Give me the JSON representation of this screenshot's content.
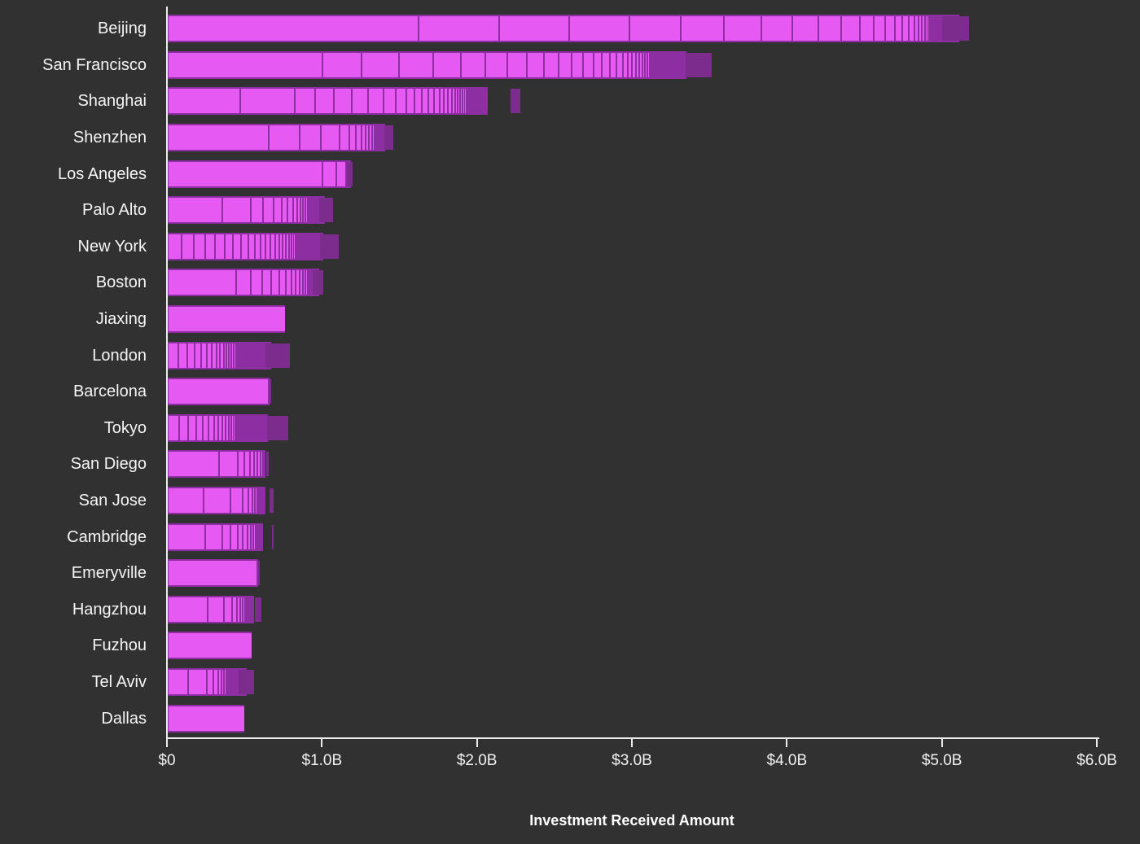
{
  "chart_data": {
    "type": "bar",
    "orientation": "horizontal",
    "title": "",
    "xlabel": "Investment Received Amount",
    "ylabel": "",
    "unit": "USD (bar lengths estimated from axis, in $ millions)",
    "xlim_usd_millions": [
      0,
      6000
    ],
    "x_tick_labels": [
      "$0",
      "$1.0B",
      "$2.0B",
      "$3.0B",
      "$4.0B",
      "$5.0B",
      "$6.0B"
    ],
    "x_tick_values_musd": [
      0,
      1000,
      2000,
      3000,
      4000,
      5000,
      6000
    ],
    "grid": false,
    "legend": "none",
    "bar_style": "each bar is a stack of individual investment segments sorted descending, separated by thin purple lines; many bars end with a solid darker purple final segment",
    "categories": [
      "Beijing",
      "San Francisco",
      "Shanghai",
      "Shenzhen",
      "Los Angeles",
      "Palo Alto",
      "New York",
      "Boston",
      "Jiaxing",
      "London",
      "Barcelona",
      "Tokyo",
      "San Diego",
      "San Jose",
      "Cambridge",
      "Emeryville",
      "Hangzhou",
      "Fuzhou",
      "Tel Aviv",
      "Dallas"
    ],
    "totals_musd": [
      5110,
      3350,
      2070,
      1410,
      1190,
      1020,
      1010,
      980,
      760,
      670,
      660,
      650,
      635,
      635,
      620,
      590,
      560,
      545,
      515,
      500
    ],
    "bars": [
      {
        "label": "Beijing",
        "total_musd": 5110,
        "final_dark_segment_musd": 170,
        "segments_musd": [
          1620,
          520,
          450,
          390,
          330,
          280,
          240,
          200,
          170,
          145,
          120,
          90,
          75,
          60,
          50,
          42,
          35,
          28,
          22,
          18,
          14,
          11,
          10,
          5,
          4,
          3,
          3,
          2,
          2,
          1
        ]
      },
      {
        "label": "San Francisco",
        "total_musd": 3350,
        "final_dark_segment_musd": 170,
        "segments_musd": [
          1000,
          250,
          240,
          221,
          180,
          160,
          140,
          125,
          110,
          95,
          85,
          75,
          65,
          57,
          50,
          44,
          38,
          33,
          29,
          25,
          22,
          19,
          16,
          14,
          12,
          10,
          9,
          8,
          7,
          6,
          5,
          4,
          4,
          3,
          3,
          2,
          2,
          2,
          2,
          1,
          1,
          1,
          1,
          1,
          1,
          1,
          1
        ]
      },
      {
        "label": "Shanghai",
        "total_musd": 2070,
        "final_dark_segment_musd": 60,
        "segments_musd": [
          470,
          350,
          130,
          120,
          120,
          105,
          95,
          80,
          70,
          52,
          47,
          42,
          38,
          34,
          30,
          27,
          24,
          21,
          18,
          16,
          14,
          12,
          11,
          10,
          9,
          8,
          7,
          6,
          5,
          5,
          4,
          4,
          3,
          3,
          2,
          2,
          2,
          2,
          1,
          1,
          1,
          1,
          1,
          1,
          1,
          1,
          1,
          1,
          1,
          1
        ]
      },
      {
        "label": "Shenzhen",
        "total_musd": 1410,
        "final_dark_segment_musd": 60,
        "segments_musd": [
          650,
          200,
          140,
          120,
          60,
          45,
          35,
          28,
          22,
          17,
          12,
          8,
          5,
          3,
          2,
          2,
          1
        ]
      },
      {
        "label": "Los Angeles",
        "total_musd": 1190,
        "final_dark_segment_musd": 40,
        "segments_musd": [
          1000,
          85,
          65
        ]
      },
      {
        "label": "Palo Alto",
        "total_musd": 1020,
        "final_dark_segment_musd": 90,
        "segments_musd": [
          350,
          185,
          80,
          70,
          50,
          40,
          33,
          27,
          22,
          18,
          14,
          11,
          9,
          7,
          5,
          4,
          2,
          2,
          1
        ]
      },
      {
        "label": "New York",
        "total_musd": 1010,
        "final_dark_segment_musd": 120,
        "segments_musd": [
          90,
          80,
          72,
          65,
          60,
          55,
          50,
          46,
          42,
          38,
          35,
          32,
          29,
          26,
          23,
          20,
          18,
          16,
          14,
          12,
          10,
          9,
          8,
          7,
          6,
          5,
          4,
          4,
          3,
          3,
          2,
          2,
          2,
          1,
          1
        ]
      },
      {
        "label": "Boston",
        "total_musd": 980,
        "final_dark_segment_musd": 70,
        "segments_musd": [
          440,
          95,
          75,
          60,
          50,
          42,
          35,
          29,
          24,
          20,
          16,
          13,
          6,
          3,
          2
        ]
      },
      {
        "label": "Jiaxing",
        "total_musd": 760,
        "final_dark_segment_musd": 0,
        "segments_musd": [
          760
        ]
      },
      {
        "label": "London",
        "total_musd": 670,
        "final_dark_segment_musd": 160,
        "segments_musd": [
          70,
          55,
          48,
          42,
          37,
          33,
          29,
          25,
          22,
          19,
          17,
          15,
          13,
          11,
          10,
          9,
          8,
          7,
          6,
          5,
          5,
          4,
          4,
          3,
          3,
          2,
          2,
          2,
          1,
          1,
          1,
          1
        ]
      },
      {
        "label": "Barcelona",
        "total_musd": 660,
        "final_dark_segment_musd": 10,
        "segments_musd": [
          650
        ]
      },
      {
        "label": "Tokyo",
        "total_musd": 650,
        "final_dark_segment_musd": 140,
        "segments_musd": [
          75,
          58,
          50,
          44,
          38,
          33,
          29,
          25,
          22,
          19,
          16,
          14,
          12,
          10,
          9,
          8,
          7,
          6,
          5,
          5,
          4,
          4,
          3,
          3,
          2,
          2,
          2,
          1,
          1,
          1,
          1,
          1
        ]
      },
      {
        "label": "San Diego",
        "total_musd": 635,
        "final_dark_segment_musd": 15,
        "segments_musd": [
          330,
          120,
          45,
          35,
          28,
          22,
          17,
          13,
          6,
          4
        ]
      },
      {
        "label": "San Jose",
        "total_musd": 635,
        "final_dark_segment_musd": 30,
        "segments_musd": [
          230,
          175,
          80,
          35,
          25,
          18,
          13,
          9,
          7,
          5,
          3,
          2,
          2,
          1
        ]
      },
      {
        "label": "Cambridge",
        "total_musd": 620,
        "final_dark_segment_musd": 10,
        "segments_musd": [
          240,
          110,
          55,
          45,
          35,
          28,
          22,
          17,
          13,
          10,
          8,
          6,
          5,
          4,
          3,
          3,
          2,
          2,
          2
        ]
      },
      {
        "label": "Emeryville",
        "total_musd": 590,
        "final_dark_segment_musd": 10,
        "segments_musd": [
          580
        ]
      },
      {
        "label": "Hangzhou",
        "total_musd": 560,
        "final_dark_segment_musd": 40,
        "segments_musd": [
          260,
          105,
          50,
          30,
          22,
          16,
          12,
          9,
          7,
          5,
          2,
          1,
          1
        ]
      },
      {
        "label": "Fuzhou",
        "total_musd": 545,
        "final_dark_segment_musd": 0,
        "segments_musd": [
          545
        ]
      },
      {
        "label": "Tel Aviv",
        "total_musd": 515,
        "final_dark_segment_musd": 100,
        "segments_musd": [
          130,
          120,
          45,
          30,
          22,
          17,
          13,
          10,
          8,
          6,
          5,
          4,
          3,
          2
        ]
      },
      {
        "label": "Dallas",
        "total_musd": 500,
        "final_dark_segment_musd": 0,
        "segments_musd": [
          500
        ]
      }
    ],
    "colors": {
      "background": "#313131",
      "bar_bright": "#e65af3",
      "bar_separator": "#8d2fa3",
      "bar_final_dark": "#7c2c8c",
      "axis_line": "#ececec",
      "label_text": "#f5f5f5",
      "tick_text": "#f2f2f2",
      "axis_title_text": "#ffffff"
    }
  }
}
